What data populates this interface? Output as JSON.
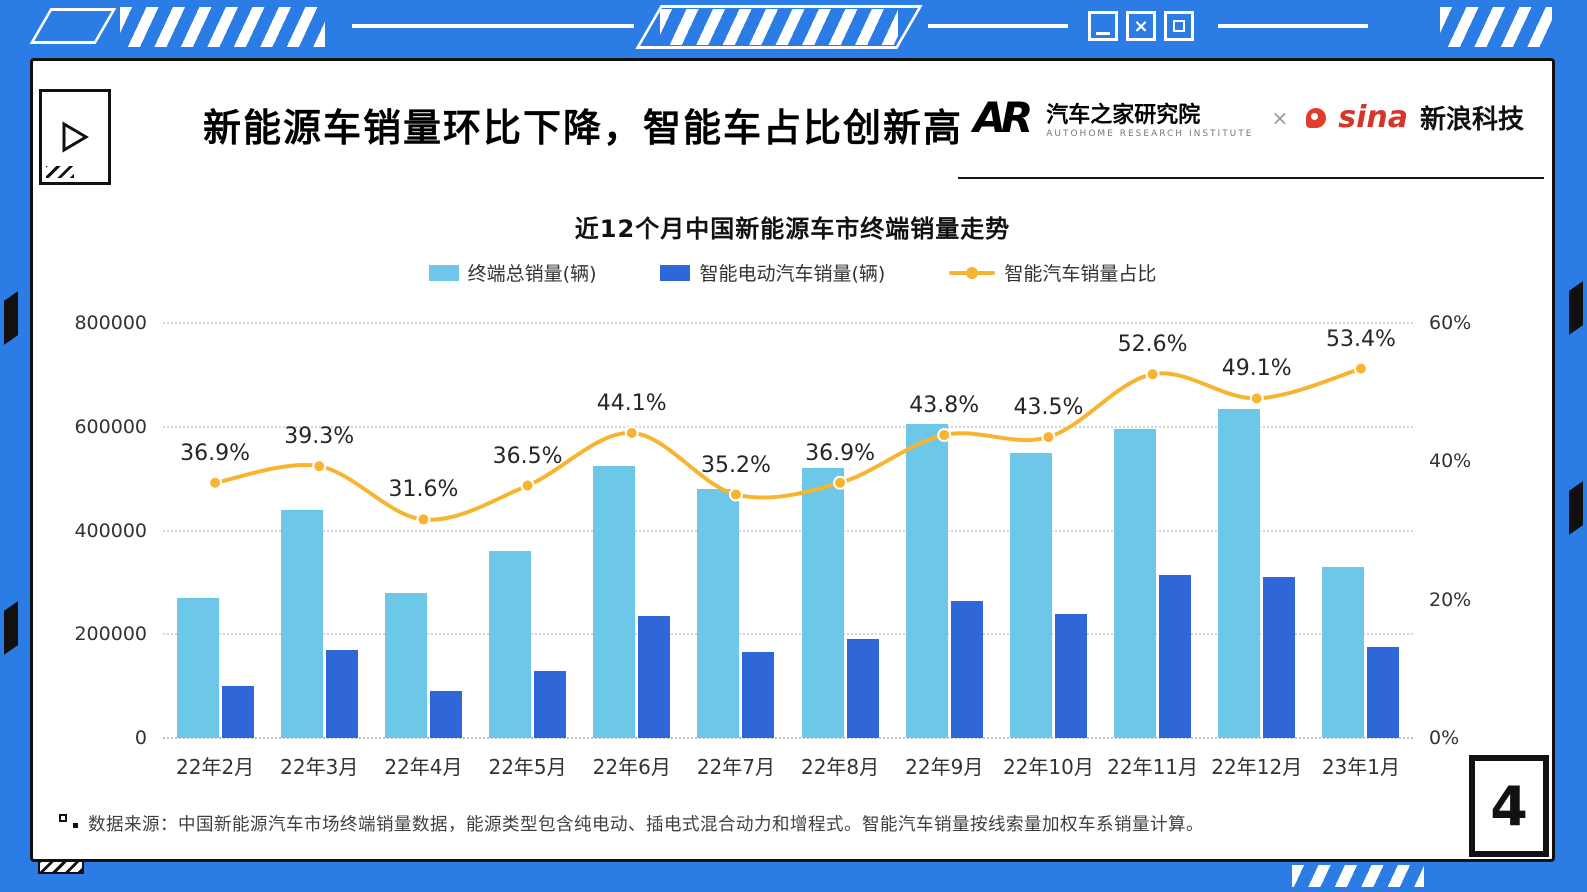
{
  "window": {
    "close_glyph": "×",
    "buttons": [
      "minimize",
      "close",
      "maximize"
    ]
  },
  "header": {
    "title": "新能源车销量环比下降，智能车占比创新高",
    "logos": {
      "autohome_mark": "AR",
      "autohome_name": "汽车之家研究院",
      "autohome_sub": "AUTOHOME RESEARCH INSTITUTE",
      "separator": "×",
      "sina_mark": "sina",
      "sina_name": "新浪科技"
    }
  },
  "chart_data": {
    "type": "combo_bar_line",
    "title": "近12个月中国新能源车市终端销量走势",
    "categories": [
      "22年2月",
      "22年3月",
      "22年4月",
      "22年5月",
      "22年6月",
      "22年7月",
      "22年8月",
      "22年9月",
      "22年10月",
      "22年11月",
      "22年12月",
      "23年1月"
    ],
    "series": [
      {
        "name": "终端总销量(辆)",
        "type": "bar",
        "axis": "left",
        "color": "#6cc7e8",
        "values": [
          270000,
          440000,
          280000,
          360000,
          525000,
          480000,
          520000,
          605000,
          550000,
          595000,
          635000,
          330000
        ]
      },
      {
        "name": "智能电动汽车销量(辆)",
        "type": "bar",
        "axis": "left",
        "color": "#2f66d8",
        "values": [
          100000,
          170000,
          90000,
          130000,
          235000,
          165000,
          190000,
          265000,
          240000,
          315000,
          310000,
          175000
        ]
      },
      {
        "name": "智能汽车销量占比",
        "type": "line",
        "axis": "right",
        "color": "#f7b431",
        "values": [
          36.9,
          39.3,
          31.6,
          36.5,
          44.1,
          35.2,
          36.9,
          43.8,
          43.5,
          52.6,
          49.1,
          53.4
        ],
        "labels": [
          "36.9%",
          "39.3%",
          "31.6%",
          "36.5%",
          "44.1%",
          "35.2%",
          "36.9%",
          "43.8%",
          "43.5%",
          "52.6%",
          "49.1%",
          "53.4%"
        ]
      }
    ],
    "left_axis": {
      "min": 0,
      "max": 800000,
      "ticks": [
        "0",
        "200000",
        "400000",
        "600000",
        "800000"
      ]
    },
    "right_axis": {
      "min": 0,
      "max": 60,
      "ticks": [
        "0%",
        "20%",
        "40%",
        "60%"
      ]
    },
    "grid": {
      "horizontal": "dotted"
    },
    "legend_position": "top"
  },
  "footer": {
    "note": "数据来源：中国新能源汽车市场终端销量数据，能源类型包含纯电动、插电式混合动力和增程式。智能汽车销量按线索量加权车系销量计算。",
    "page_number": "4"
  }
}
